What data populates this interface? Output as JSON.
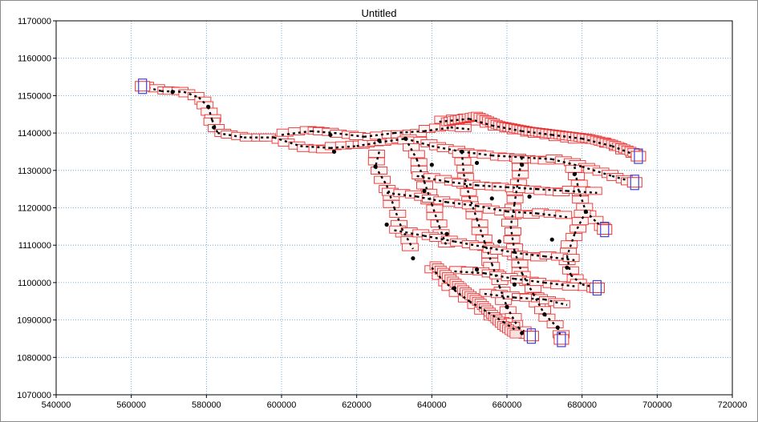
{
  "chart_data": {
    "type": "scatter",
    "title": "Untitled",
    "xlabel": "",
    "ylabel": "",
    "xlim": [
      540000,
      720000
    ],
    "ylim": [
      1070000,
      1170000
    ],
    "x_ticks": [
      "540000",
      "560000",
      "580000",
      "600000",
      "620000",
      "640000",
      "660000",
      "680000",
      "700000",
      "720000"
    ],
    "y_ticks": [
      "1070000",
      "1080000",
      "1090000",
      "1100000",
      "1110000",
      "1120000",
      "1130000",
      "1140000",
      "1150000",
      "1160000",
      "1170000"
    ],
    "grid": true,
    "colors": {
      "grid": "#5b9bd5",
      "feature": "#e83030",
      "feature_fill": "#fff5f5",
      "boundary": "#4040d8",
      "node": "#000000",
      "link": "#c030c0"
    },
    "boundary_nodes": [
      {
        "x": 563000,
        "y": 1152500
      },
      {
        "x": 695000,
        "y": 1133800
      },
      {
        "x": 694000,
        "y": 1126800
      },
      {
        "x": 686000,
        "y": 1114200
      },
      {
        "x": 684000,
        "y": 1098600
      },
      {
        "x": 674500,
        "y": 1084800
      },
      {
        "x": 666500,
        "y": 1085700
      }
    ],
    "junction_nodes": [
      {
        "x": 571000,
        "y": 1151000
      },
      {
        "x": 580500,
        "y": 1147000
      },
      {
        "x": 582000,
        "y": 1141500
      },
      {
        "x": 613000,
        "y": 1139500
      },
      {
        "x": 614000,
        "y": 1135000
      },
      {
        "x": 626000,
        "y": 1138000
      },
      {
        "x": 633000,
        "y": 1138500
      },
      {
        "x": 648000,
        "y": 1135000
      },
      {
        "x": 625000,
        "y": 1131000
      },
      {
        "x": 640000,
        "y": 1131500
      },
      {
        "x": 652000,
        "y": 1132000
      },
      {
        "x": 664000,
        "y": 1131500
      },
      {
        "x": 678000,
        "y": 1129000
      },
      {
        "x": 638000,
        "y": 1124500
      },
      {
        "x": 656000,
        "y": 1122500
      },
      {
        "x": 666000,
        "y": 1123000
      },
      {
        "x": 681000,
        "y": 1119000
      },
      {
        "x": 628000,
        "y": 1115500
      },
      {
        "x": 644000,
        "y": 1113000
      },
      {
        "x": 658000,
        "y": 1111000
      },
      {
        "x": 672000,
        "y": 1111500
      },
      {
        "x": 635000,
        "y": 1106500
      },
      {
        "x": 652000,
        "y": 1103500
      },
      {
        "x": 662000,
        "y": 1099500
      },
      {
        "x": 676000,
        "y": 1104000
      },
      {
        "x": 646000,
        "y": 1098500
      },
      {
        "x": 660000,
        "y": 1093500
      },
      {
        "x": 670000,
        "y": 1091500
      },
      {
        "x": 664000,
        "y": 1086500
      },
      {
        "x": 673500,
        "y": 1088000
      }
    ],
    "segments": [
      [
        [
          563000,
          1152500
        ],
        [
          568000,
          1151200
        ],
        [
          574000,
          1151000
        ],
        [
          578000,
          1149500
        ],
        [
          580500,
          1147000
        ],
        [
          581500,
          1143500
        ],
        [
          583000,
          1140000
        ],
        [
          590000,
          1138800
        ],
        [
          598000,
          1138800
        ],
        [
          605000,
          1136500
        ],
        [
          613000,
          1136000
        ],
        [
          620000,
          1136500
        ],
        [
          626000,
          1137500
        ],
        [
          633000,
          1138500
        ]
      ],
      [
        [
          600000,
          1139500
        ],
        [
          608000,
          1140500
        ],
        [
          614000,
          1140000
        ],
        [
          622000,
          1139000
        ],
        [
          630000,
          1140000
        ],
        [
          638000,
          1140500
        ],
        [
          645000,
          1141500
        ],
        [
          650000,
          1141000
        ]
      ],
      [
        [
          642000,
          1143000
        ],
        [
          650000,
          1143800
        ],
        [
          656000,
          1142000
        ],
        [
          664000,
          1140500
        ],
        [
          672000,
          1139500
        ],
        [
          680000,
          1138500
        ],
        [
          688000,
          1136500
        ],
        [
          695000,
          1133800
        ]
      ],
      [
        [
          633000,
          1138500
        ],
        [
          640000,
          1136500
        ],
        [
          648000,
          1135000
        ],
        [
          656000,
          1134000
        ],
        [
          664000,
          1133500
        ],
        [
          672000,
          1133000
        ],
        [
          680000,
          1131000
        ],
        [
          688000,
          1128500
        ],
        [
          694000,
          1126800
        ]
      ],
      [
        [
          626000,
          1135000
        ],
        [
          625000,
          1131000
        ],
        [
          628000,
          1126000
        ],
        [
          630000,
          1120000
        ],
        [
          632000,
          1114500
        ],
        [
          635000,
          1109000
        ]
      ],
      [
        [
          633000,
          1138500
        ],
        [
          636000,
          1133000
        ],
        [
          638000,
          1127000
        ],
        [
          640000,
          1121000
        ],
        [
          642000,
          1115000
        ],
        [
          644000,
          1109500
        ]
      ],
      [
        [
          648000,
          1135000
        ],
        [
          648500,
          1129000
        ],
        [
          650000,
          1123000
        ],
        [
          652000,
          1117000
        ],
        [
          654000,
          1111000
        ],
        [
          656000,
          1105000
        ],
        [
          658000,
          1099000
        ],
        [
          660000,
          1093500
        ],
        [
          663000,
          1088000
        ],
        [
          666500,
          1085700
        ]
      ],
      [
        [
          664000,
          1133500
        ],
        [
          663000,
          1127500
        ],
        [
          662000,
          1121000
        ],
        [
          661000,
          1115000
        ],
        [
          662000,
          1108500
        ],
        [
          664000,
          1102500
        ],
        [
          667000,
          1097000
        ],
        [
          670000,
          1091500
        ],
        [
          673500,
          1088000
        ],
        [
          674500,
          1084800
        ]
      ],
      [
        [
          678000,
          1131000
        ],
        [
          679000,
          1125000
        ],
        [
          681000,
          1119000
        ],
        [
          684000,
          1116000
        ],
        [
          686000,
          1114200
        ]
      ],
      [
        [
          681000,
          1119000
        ],
        [
          678000,
          1113000
        ],
        [
          676000,
          1107000
        ],
        [
          677000,
          1102000
        ],
        [
          680000,
          1099500
        ],
        [
          684000,
          1098600
        ]
      ],
      [
        [
          640000,
          1104000
        ],
        [
          643000,
          1100500
        ],
        [
          646000,
          1098000
        ],
        [
          650000,
          1095000
        ],
        [
          655000,
          1092000
        ],
        [
          659000,
          1089500
        ],
        [
          662000,
          1087500
        ]
      ],
      [
        [
          628000,
          1124000
        ],
        [
          636000,
          1123000
        ],
        [
          644000,
          1121500
        ],
        [
          652000,
          1120500
        ],
        [
          660000,
          1119000
        ],
        [
          668000,
          1118500
        ],
        [
          676000,
          1117500
        ]
      ],
      [
        [
          630000,
          1114000
        ],
        [
          638000,
          1112500
        ],
        [
          646000,
          1111000
        ],
        [
          654000,
          1109500
        ],
        [
          662000,
          1108000
        ],
        [
          670000,
          1107000
        ],
        [
          678000,
          1106000
        ]
      ],
      [
        [
          636000,
          1128500
        ],
        [
          644000,
          1127000
        ],
        [
          652000,
          1126000
        ],
        [
          660000,
          1125500
        ],
        [
          668000,
          1125000
        ],
        [
          676000,
          1124500
        ],
        [
          684000,
          1124000
        ]
      ],
      [
        [
          646000,
          1103000
        ],
        [
          654000,
          1102500
        ],
        [
          662000,
          1101000
        ],
        [
          670000,
          1100000
        ],
        [
          678000,
          1099000
        ]
      ],
      [
        [
          654000,
          1097000
        ],
        [
          662000,
          1096000
        ],
        [
          670000,
          1095500
        ],
        [
          676000,
          1094000
        ]
      ]
    ],
    "shore_features": [
      [
        [
          644000,
          1143000
        ],
        [
          652000,
          1144500
        ],
        [
          658000,
          1142000
        ],
        [
          666000,
          1140500
        ],
        [
          674000,
          1139500
        ],
        [
          682000,
          1138500
        ],
        [
          688000,
          1137000
        ],
        [
          694500,
          1134500
        ]
      ],
      [
        [
          641000,
          1104500
        ],
        [
          645000,
          1101000
        ],
        [
          649000,
          1097500
        ],
        [
          653000,
          1094500
        ],
        [
          656000,
          1091500
        ],
        [
          659000,
          1088500
        ],
        [
          663000,
          1085800
        ]
      ]
    ]
  }
}
